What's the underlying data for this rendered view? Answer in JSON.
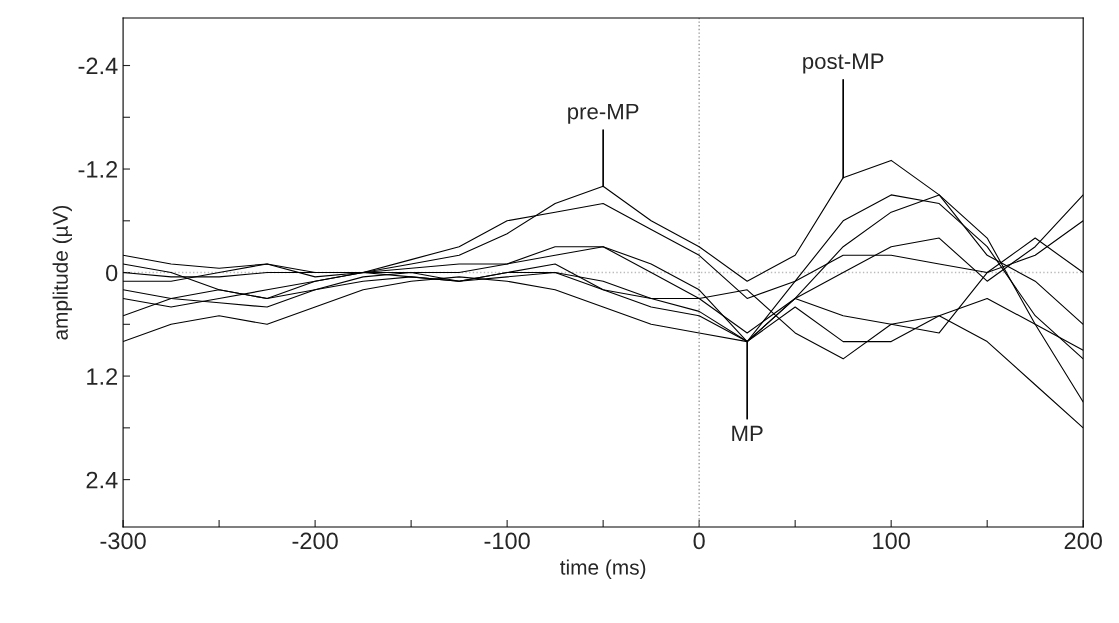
{
  "chart_data": {
    "type": "line",
    "xlabel": "time (ms)",
    "ylabel": "amplitude (µV)",
    "x": [
      -300,
      -275,
      -250,
      -225,
      -200,
      -175,
      -150,
      -125,
      -100,
      -75,
      -50,
      -25,
      0,
      25,
      50,
      75,
      100,
      125,
      150,
      175,
      200
    ],
    "series": [
      {
        "color": "#000000",
        "values": [
          0.0,
          0.05,
          0.05,
          0.0,
          0.0,
          0.0,
          -0.1,
          -0.2,
          -0.45,
          -0.8,
          -1.0,
          -0.6,
          -0.3,
          0.1,
          -0.2,
          -1.1,
          -1.3,
          -0.9,
          -0.2,
          0.1,
          0.6
        ]
      },
      {
        "color": "#000000",
        "values": [
          -0.2,
          -0.1,
          -0.05,
          -0.1,
          0.0,
          0.0,
          -0.15,
          -0.3,
          -0.6,
          -0.7,
          -0.8,
          -0.5,
          -0.2,
          0.3,
          0.1,
          -0.6,
          -0.9,
          -0.8,
          -0.3,
          0.5,
          1.0
        ]
      },
      {
        "color": "#000000",
        "values": [
          0.3,
          0.4,
          0.3,
          0.2,
          0.1,
          0.0,
          -0.05,
          -0.1,
          -0.1,
          -0.2,
          -0.3,
          0.0,
          0.3,
          0.7,
          0.3,
          -0.3,
          -0.7,
          -0.9,
          -0.4,
          0.6,
          1.5
        ]
      },
      {
        "color": "#000000",
        "values": [
          0.8,
          0.6,
          0.5,
          0.6,
          0.4,
          0.2,
          0.1,
          0.05,
          0.1,
          0.2,
          0.4,
          0.6,
          0.7,
          0.8,
          0.3,
          0.0,
          -0.3,
          -0.4,
          0.1,
          -0.3,
          -0.9
        ]
      },
      {
        "color": "#000000",
        "values": [
          -0.1,
          0.0,
          0.2,
          0.3,
          0.1,
          0.0,
          0.0,
          0.0,
          -0.1,
          -0.3,
          -0.3,
          -0.1,
          0.2,
          0.8,
          0.1,
          -0.2,
          -0.2,
          -0.1,
          0.0,
          -0.2,
          -0.6
        ]
      },
      {
        "color": "#000000",
        "values": [
          0.2,
          0.3,
          0.35,
          0.4,
          0.2,
          0.05,
          0.0,
          0.1,
          0.0,
          -0.1,
          0.2,
          0.4,
          0.5,
          0.8,
          0.3,
          0.5,
          0.6,
          0.5,
          0.3,
          0.6,
          0.9
        ]
      },
      {
        "color": "#000000",
        "values": [
          0.1,
          0.1,
          0.0,
          -0.1,
          0.05,
          0.0,
          0.05,
          0.1,
          0.0,
          0.0,
          0.1,
          0.3,
          0.3,
          0.2,
          0.7,
          1.0,
          0.6,
          0.7,
          0.0,
          -0.4,
          0.0
        ]
      },
      {
        "color": "#000000",
        "values": [
          0.5,
          0.3,
          0.2,
          0.3,
          0.2,
          0.1,
          0.05,
          0.1,
          0.05,
          0.0,
          0.2,
          0.3,
          0.45,
          0.8,
          0.4,
          0.8,
          0.8,
          0.5,
          0.8,
          1.3,
          1.8
        ]
      }
    ],
    "xlim": [
      -300,
      200
    ],
    "xticks": [
      -300,
      {
        "value": -250,
        "label": null
      },
      -200,
      {
        "value": -150,
        "label": null
      },
      -100,
      {
        "value": -50,
        "label": null
      },
      0,
      {
        "value": 50,
        "label": null
      },
      100,
      {
        "value": 150,
        "label": null
      },
      200
    ],
    "ylim": [
      2.95,
      -2.95
    ],
    "yticks": [
      {
        "value": -2.4,
        "label": "-2.4"
      },
      {
        "value": -1.8,
        "label": null
      },
      {
        "value": -1.2,
        "label": "-1.2"
      },
      {
        "value": -0.6,
        "label": null
      },
      0,
      {
        "value": 0.6,
        "label": null
      },
      {
        "value": 1.2,
        "label": "1.2"
      },
      {
        "value": 1.8,
        "label": null
      },
      {
        "value": 2.4,
        "label": "2.4"
      }
    ],
    "ref_lines": [
      {
        "axis": "x",
        "value": 0,
        "color": "#999999",
        "line_style": "dotted"
      },
      {
        "axis": "y",
        "value": 0,
        "color": "#bbbbbb",
        "line_style": "dotted"
      }
    ],
    "annotations": [
      {
        "text": "pre-MP",
        "x": -50,
        "y": -1.0
      },
      {
        "text": "post-MP",
        "x": 75,
        "y": -1.1
      },
      {
        "text": "MP",
        "x": 25,
        "y": 0.8
      }
    ],
    "grid": false,
    "legend": false,
    "marker": "none",
    "line_style": "solid"
  }
}
